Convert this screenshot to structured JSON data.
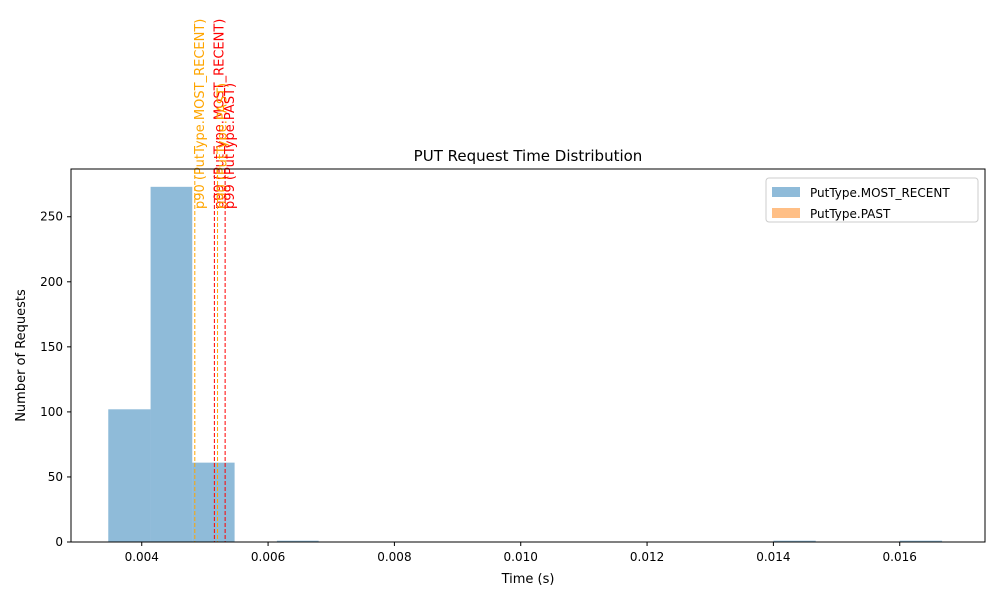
{
  "chart_data": {
    "type": "bar",
    "title": "PUT Request Time Distribution",
    "xlabel": "Time (s)",
    "ylabel": "Number of Requests",
    "xlim": [
      0.00288,
      0.01735
    ],
    "ylim": [
      0,
      286.7
    ],
    "x_ticks": [
      0.004,
      0.006,
      0.008,
      0.01,
      0.012,
      0.014,
      0.016
    ],
    "x_tick_labels": [
      "0.004",
      "0.006",
      "0.008",
      "0.010",
      "0.012",
      "0.014",
      "0.016"
    ],
    "y_ticks": [
      0,
      50,
      100,
      150,
      200,
      250
    ],
    "y_tick_labels": [
      "0",
      "50",
      "100",
      "150",
      "200",
      "250"
    ],
    "grid": false,
    "legend_position": "top-right",
    "series": [
      {
        "name": "PutType.MOST_RECENT",
        "color": "#1f77b4",
        "opacity": 0.5,
        "bins": [
          {
            "x0": 0.00347,
            "x1": 0.00414,
            "count": 102
          },
          {
            "x0": 0.00414,
            "x1": 0.0048,
            "count": 273
          },
          {
            "x0": 0.0048,
            "x1": 0.00547,
            "count": 61
          },
          {
            "x0": 0.00614,
            "x1": 0.0068,
            "count": 1
          },
          {
            "x0": 0.014,
            "x1": 0.01467,
            "count": 1
          },
          {
            "x0": 0.016,
            "x1": 0.01667,
            "count": 1
          }
        ]
      },
      {
        "name": "PutType.PAST",
        "color": "#ff7f0e",
        "opacity": 0.5,
        "bins": []
      }
    ],
    "annotations": [
      {
        "label": "p90 (PutType.MOST_RECENT)",
        "x": 0.00484,
        "color": "#ffa500"
      },
      {
        "label": "p99 (PutType.MOST_RECENT)",
        "x": 0.00515,
        "color": "#ff0000"
      },
      {
        "label": "p90 (PutType.PAST)",
        "x": 0.0052,
        "color": "#ffa500"
      },
      {
        "label": "p99 (PutType.PAST)",
        "x": 0.00532,
        "color": "#ff0000"
      }
    ]
  }
}
